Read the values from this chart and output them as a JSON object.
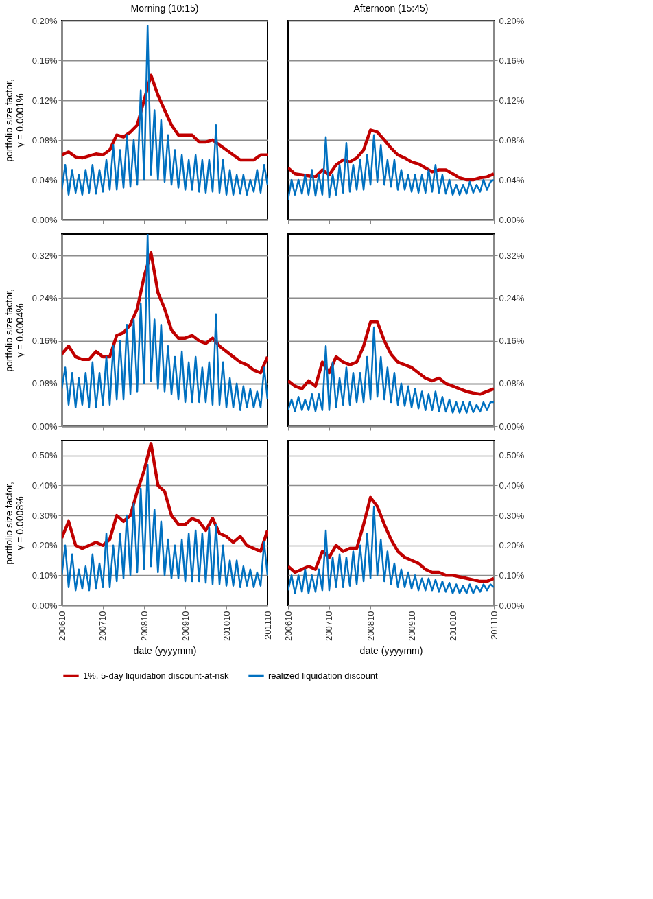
{
  "chart_data": [
    {
      "type": "line",
      "title": "Morning (10:15)",
      "ylabel": "portfolio size factor, γ = 0.0001%",
      "grid": "y",
      "tick_labels": "y",
      "x": [
        "2006-10",
        "2006-11",
        "2006-12",
        "2007-01",
        "2007-02",
        "2007-03",
        "2007-04",
        "2007-05",
        "2007-06",
        "2007-07",
        "2007-08",
        "2007-09",
        "2007-10",
        "2007-11",
        "2007-12",
        "2008-01",
        "2008-02",
        "2008-03",
        "2008-04",
        "2008-05",
        "2008-06",
        "2008-07",
        "2008-08",
        "2008-09",
        "2008-10",
        "2008-11",
        "2008-12",
        "2009-01",
        "2009-02",
        "2009-03",
        "2009-04",
        "2009-05",
        "2009-06",
        "2009-07",
        "2009-08",
        "2009-09",
        "2009-10",
        "2009-11",
        "2009-12",
        "2010-01",
        "2010-02",
        "2010-03",
        "2010-04",
        "2010-05",
        "2010-06",
        "2010-07",
        "2010-08",
        "2010-09",
        "2010-10",
        "2010-11",
        "2010-12",
        "2011-01",
        "2011-02",
        "2011-03",
        "2011-04",
        "2011-05",
        "2011-06",
        "2011-07",
        "2011-08",
        "2011-09",
        "2011-10"
      ],
      "xlim": [
        "2006-10",
        "2011-10"
      ],
      "xticks": [
        {
          "value": "2006-10",
          "label": null
        },
        {
          "value": "2007-10",
          "label": null
        },
        {
          "value": "2008-10",
          "label": null
        },
        {
          "value": "2009-10",
          "label": null
        },
        {
          "value": "2010-10",
          "label": null
        },
        {
          "value": "2011-10",
          "label": null
        }
      ],
      "ylim": [
        0,
        0.2
      ],
      "yticks": [
        {
          "value": 0,
          "label": "0.00%"
        },
        {
          "value": 0.04,
          "label": "0.04%"
        },
        {
          "value": 0.08,
          "label": "0.08%"
        },
        {
          "value": 0.12,
          "label": "0.12%"
        },
        {
          "value": 0.16,
          "label": "0.16%"
        },
        {
          "value": 0.2,
          "label": "0.20%"
        }
      ],
      "series": [
        {
          "color": "#c00000",
          "x": [
            "2006-10",
            "2006-12",
            "2007-02",
            "2007-04",
            "2007-06",
            "2007-08",
            "2007-10",
            "2007-12",
            "2008-02",
            "2008-04",
            "2008-06",
            "2008-08",
            "2008-10",
            "2008-12",
            "2009-02",
            "2009-04",
            "2009-06",
            "2009-08",
            "2009-10",
            "2009-12",
            "2010-02",
            "2010-04",
            "2010-06",
            "2010-08",
            "2010-10",
            "2010-12",
            "2011-02",
            "2011-04",
            "2011-06",
            "2011-08",
            "2011-10"
          ],
          "values": [
            0.065,
            0.068,
            0.063,
            0.062,
            0.064,
            0.066,
            0.065,
            0.07,
            0.085,
            0.083,
            0.088,
            0.095,
            0.12,
            0.145,
            0.125,
            0.11,
            0.095,
            0.085,
            0.085,
            0.085,
            0.078,
            0.078,
            0.08,
            0.075,
            0.07,
            0.065,
            0.06,
            0.06,
            0.06,
            0.065,
            0.065
          ]
        },
        {
          "color": "#0070c0",
          "values": [
            0.03,
            0.055,
            0.025,
            0.05,
            0.027,
            0.045,
            0.025,
            0.05,
            0.027,
            0.055,
            0.026,
            0.05,
            0.028,
            0.06,
            0.03,
            0.075,
            0.03,
            0.07,
            0.032,
            0.085,
            0.033,
            0.08,
            0.035,
            0.13,
            0.04,
            0.195,
            0.045,
            0.11,
            0.04,
            0.1,
            0.038,
            0.085,
            0.035,
            0.07,
            0.032,
            0.065,
            0.03,
            0.06,
            0.03,
            0.065,
            0.028,
            0.06,
            0.027,
            0.06,
            0.028,
            0.095,
            0.027,
            0.06,
            0.025,
            0.05,
            0.025,
            0.045,
            0.026,
            0.045,
            0.025,
            0.04,
            0.028,
            0.05,
            0.027,
            0.055,
            0.035
          ]
        }
      ]
    },
    {
      "type": "line",
      "title": "Afternoon (15:45)",
      "grid": "y",
      "tick_labels": "y",
      "x": [
        "2006-10",
        "2006-11",
        "2006-12",
        "2007-01",
        "2007-02",
        "2007-03",
        "2007-04",
        "2007-05",
        "2007-06",
        "2007-07",
        "2007-08",
        "2007-09",
        "2007-10",
        "2007-11",
        "2007-12",
        "2008-01",
        "2008-02",
        "2008-03",
        "2008-04",
        "2008-05",
        "2008-06",
        "2008-07",
        "2008-08",
        "2008-09",
        "2008-10",
        "2008-11",
        "2008-12",
        "2009-01",
        "2009-02",
        "2009-03",
        "2009-04",
        "2009-05",
        "2009-06",
        "2009-07",
        "2009-08",
        "2009-09",
        "2009-10",
        "2009-11",
        "2009-12",
        "2010-01",
        "2010-02",
        "2010-03",
        "2010-04",
        "2010-05",
        "2010-06",
        "2010-07",
        "2010-08",
        "2010-09",
        "2010-10",
        "2010-11",
        "2010-12",
        "2011-01",
        "2011-02",
        "2011-03",
        "2011-04",
        "2011-05",
        "2011-06",
        "2011-07",
        "2011-08",
        "2011-09",
        "2011-10"
      ],
      "xlim": [
        "2006-10",
        "2011-10"
      ],
      "xticks": [
        {
          "value": "2006-10",
          "label": null
        },
        {
          "value": "2007-10",
          "label": null
        },
        {
          "value": "2008-10",
          "label": null
        },
        {
          "value": "2009-10",
          "label": null
        },
        {
          "value": "2010-10",
          "label": null
        },
        {
          "value": "2011-10",
          "label": null
        }
      ],
      "y2lim": [
        0,
        0.2
      ],
      "y2ticks": [
        {
          "value": 0,
          "label": "0.00%"
        },
        {
          "value": 0.04,
          "label": "0.04%"
        },
        {
          "value": 0.08,
          "label": "0.08%"
        },
        {
          "value": 0.12,
          "label": "0.12%"
        },
        {
          "value": 0.16,
          "label": "0.16%"
        },
        {
          "value": 0.2,
          "label": "0.20%"
        }
      ],
      "series": [
        {
          "color": "#c00000",
          "axis": "y2",
          "x": [
            "2006-10",
            "2006-12",
            "2007-02",
            "2007-04",
            "2007-06",
            "2007-08",
            "2007-10",
            "2007-12",
            "2008-02",
            "2008-04",
            "2008-06",
            "2008-08",
            "2008-10",
            "2008-12",
            "2009-02",
            "2009-04",
            "2009-06",
            "2009-08",
            "2009-10",
            "2009-12",
            "2010-02",
            "2010-04",
            "2010-06",
            "2010-08",
            "2010-10",
            "2010-12",
            "2011-02",
            "2011-04",
            "2011-06",
            "2011-08",
            "2011-10"
          ],
          "values": [
            0.052,
            0.046,
            0.045,
            0.044,
            0.043,
            0.05,
            0.045,
            0.055,
            0.06,
            0.058,
            0.062,
            0.07,
            0.09,
            0.088,
            0.08,
            0.072,
            0.065,
            0.062,
            0.058,
            0.056,
            0.052,
            0.048,
            0.05,
            0.05,
            0.046,
            0.042,
            0.04,
            0.04,
            0.042,
            0.043,
            0.046
          ]
        },
        {
          "color": "#0070c0",
          "axis": "y2",
          "values": [
            0.02,
            0.04,
            0.025,
            0.04,
            0.026,
            0.045,
            0.025,
            0.05,
            0.024,
            0.045,
            0.025,
            0.083,
            0.022,
            0.045,
            0.025,
            0.055,
            0.027,
            0.077,
            0.028,
            0.055,
            0.03,
            0.06,
            0.03,
            0.065,
            0.035,
            0.085,
            0.038,
            0.075,
            0.035,
            0.06,
            0.033,
            0.06,
            0.03,
            0.05,
            0.03,
            0.045,
            0.028,
            0.045,
            0.027,
            0.045,
            0.027,
            0.05,
            0.028,
            0.055,
            0.027,
            0.045,
            0.026,
            0.04,
            0.025,
            0.035,
            0.025,
            0.035,
            0.026,
            0.038,
            0.027,
            0.035,
            0.028,
            0.04,
            0.03,
            0.038,
            0.04
          ]
        }
      ]
    },
    {
      "type": "line",
      "ylabel": "portfolio size factor, γ = 0.0004%",
      "grid": "y",
      "tick_labels": "y",
      "x": [
        "2006-10",
        "2006-11",
        "2006-12",
        "2007-01",
        "2007-02",
        "2007-03",
        "2007-04",
        "2007-05",
        "2007-06",
        "2007-07",
        "2007-08",
        "2007-09",
        "2007-10",
        "2007-11",
        "2007-12",
        "2008-01",
        "2008-02",
        "2008-03",
        "2008-04",
        "2008-05",
        "2008-06",
        "2008-07",
        "2008-08",
        "2008-09",
        "2008-10",
        "2008-11",
        "2008-12",
        "2009-01",
        "2009-02",
        "2009-03",
        "2009-04",
        "2009-05",
        "2009-06",
        "2009-07",
        "2009-08",
        "2009-09",
        "2009-10",
        "2009-11",
        "2009-12",
        "2010-01",
        "2010-02",
        "2010-03",
        "2010-04",
        "2010-05",
        "2010-06",
        "2010-07",
        "2010-08",
        "2010-09",
        "2010-10",
        "2010-11",
        "2010-12",
        "2011-01",
        "2011-02",
        "2011-03",
        "2011-04",
        "2011-05",
        "2011-06",
        "2011-07",
        "2011-08",
        "2011-09",
        "2011-10"
      ],
      "xlim": [
        "2006-10",
        "2011-10"
      ],
      "xticks": [
        {
          "value": "2006-10",
          "label": null
        },
        {
          "value": "2007-10",
          "label": null
        },
        {
          "value": "2008-10",
          "label": null
        },
        {
          "value": "2009-10",
          "label": null
        },
        {
          "value": "2010-10",
          "label": null
        },
        {
          "value": "2011-10",
          "label": null
        }
      ],
      "ylim": [
        0,
        0.36
      ],
      "yticks": [
        {
          "value": 0,
          "label": "0.00%"
        },
        {
          "value": 0.08,
          "label": "0.08%"
        },
        {
          "value": 0.16,
          "label": "0.16%"
        },
        {
          "value": 0.24,
          "label": "0.24%"
        },
        {
          "value": 0.32,
          "label": "0.32%"
        }
      ],
      "series": [
        {
          "color": "#c00000",
          "x": [
            "2006-10",
            "2006-12",
            "2007-02",
            "2007-04",
            "2007-06",
            "2007-08",
            "2007-10",
            "2007-12",
            "2008-02",
            "2008-04",
            "2008-06",
            "2008-08",
            "2008-10",
            "2008-12",
            "2009-02",
            "2009-04",
            "2009-06",
            "2009-08",
            "2009-10",
            "2009-12",
            "2010-02",
            "2010-04",
            "2010-06",
            "2010-08",
            "2010-10",
            "2010-12",
            "2011-02",
            "2011-04",
            "2011-06",
            "2011-08",
            "2011-10"
          ],
          "values": [
            0.135,
            0.15,
            0.13,
            0.125,
            0.125,
            0.14,
            0.13,
            0.13,
            0.17,
            0.175,
            0.19,
            0.22,
            0.28,
            0.325,
            0.25,
            0.22,
            0.18,
            0.165,
            0.165,
            0.17,
            0.16,
            0.155,
            0.165,
            0.15,
            0.14,
            0.13,
            0.12,
            0.115,
            0.105,
            0.1,
            0.13
          ]
        },
        {
          "color": "#0070c0",
          "values": [
            0.07,
            0.11,
            0.04,
            0.1,
            0.035,
            0.09,
            0.04,
            0.1,
            0.035,
            0.12,
            0.035,
            0.1,
            0.04,
            0.13,
            0.04,
            0.15,
            0.05,
            0.16,
            0.05,
            0.19,
            0.06,
            0.2,
            0.065,
            0.23,
            0.08,
            0.36,
            0.085,
            0.2,
            0.07,
            0.19,
            0.065,
            0.15,
            0.06,
            0.13,
            0.05,
            0.14,
            0.045,
            0.12,
            0.045,
            0.13,
            0.045,
            0.11,
            0.045,
            0.12,
            0.04,
            0.21,
            0.04,
            0.12,
            0.035,
            0.09,
            0.035,
            0.08,
            0.03,
            0.075,
            0.035,
            0.07,
            0.035,
            0.065,
            0.035,
            0.11,
            0.05
          ]
        }
      ]
    },
    {
      "type": "line",
      "grid": "y",
      "tick_labels": "y",
      "x": [
        "2006-10",
        "2006-11",
        "2006-12",
        "2007-01",
        "2007-02",
        "2007-03",
        "2007-04",
        "2007-05",
        "2007-06",
        "2007-07",
        "2007-08",
        "2007-09",
        "2007-10",
        "2007-11",
        "2007-12",
        "2008-01",
        "2008-02",
        "2008-03",
        "2008-04",
        "2008-05",
        "2008-06",
        "2008-07",
        "2008-08",
        "2008-09",
        "2008-10",
        "2008-11",
        "2008-12",
        "2009-01",
        "2009-02",
        "2009-03",
        "2009-04",
        "2009-05",
        "2009-06",
        "2009-07",
        "2009-08",
        "2009-09",
        "2009-10",
        "2009-11",
        "2009-12",
        "2010-01",
        "2010-02",
        "2010-03",
        "2010-04",
        "2010-05",
        "2010-06",
        "2010-07",
        "2010-08",
        "2010-09",
        "2010-10",
        "2010-11",
        "2010-12",
        "2011-01",
        "2011-02",
        "2011-03",
        "2011-04",
        "2011-05",
        "2011-06",
        "2011-07",
        "2011-08",
        "2011-09",
        "2011-10"
      ],
      "xlim": [
        "2006-10",
        "2011-10"
      ],
      "xticks": [
        {
          "value": "2006-10",
          "label": null
        },
        {
          "value": "2007-10",
          "label": null
        },
        {
          "value": "2008-10",
          "label": null
        },
        {
          "value": "2009-10",
          "label": null
        },
        {
          "value": "2010-10",
          "label": null
        },
        {
          "value": "2011-10",
          "label": null
        }
      ],
      "y2lim": [
        0,
        0.36
      ],
      "y2ticks": [
        {
          "value": 0,
          "label": "0.00%"
        },
        {
          "value": 0.08,
          "label": "0.08%"
        },
        {
          "value": 0.16,
          "label": "0.16%"
        },
        {
          "value": 0.24,
          "label": "0.24%"
        },
        {
          "value": 0.32,
          "label": "0.32%"
        }
      ],
      "series": [
        {
          "color": "#c00000",
          "axis": "y2",
          "x": [
            "2006-10",
            "2006-12",
            "2007-02",
            "2007-04",
            "2007-06",
            "2007-08",
            "2007-10",
            "2007-12",
            "2008-02",
            "2008-04",
            "2008-06",
            "2008-08",
            "2008-10",
            "2008-12",
            "2009-02",
            "2009-04",
            "2009-06",
            "2009-08",
            "2009-10",
            "2009-12",
            "2010-02",
            "2010-04",
            "2010-06",
            "2010-08",
            "2010-10",
            "2010-12",
            "2011-02",
            "2011-04",
            "2011-06",
            "2011-08",
            "2011-10"
          ],
          "values": [
            0.085,
            0.075,
            0.07,
            0.085,
            0.075,
            0.12,
            0.1,
            0.13,
            0.12,
            0.115,
            0.12,
            0.15,
            0.195,
            0.195,
            0.16,
            0.135,
            0.12,
            0.115,
            0.11,
            0.1,
            0.09,
            0.085,
            0.09,
            0.08,
            0.075,
            0.07,
            0.065,
            0.062,
            0.06,
            0.065,
            0.07
          ]
        },
        {
          "color": "#0070c0",
          "axis": "y2",
          "values": [
            0.03,
            0.05,
            0.028,
            0.055,
            0.03,
            0.05,
            0.03,
            0.06,
            0.028,
            0.06,
            0.03,
            0.15,
            0.03,
            0.12,
            0.035,
            0.09,
            0.04,
            0.11,
            0.04,
            0.1,
            0.045,
            0.1,
            0.045,
            0.13,
            0.05,
            0.185,
            0.055,
            0.13,
            0.05,
            0.11,
            0.045,
            0.1,
            0.04,
            0.08,
            0.038,
            0.075,
            0.035,
            0.07,
            0.033,
            0.065,
            0.03,
            0.06,
            0.03,
            0.065,
            0.028,
            0.055,
            0.027,
            0.05,
            0.025,
            0.045,
            0.025,
            0.045,
            0.025,
            0.045,
            0.026,
            0.04,
            0.027,
            0.045,
            0.03,
            0.045,
            0.045
          ]
        }
      ]
    },
    {
      "type": "line",
      "ylabel": "portfolio size factor, γ = 0.0008%",
      "xlabel": "date (yyyymm)",
      "grid": "y",
      "legend": "bottom",
      "x": [
        "2006-10",
        "2006-11",
        "2006-12",
        "2007-01",
        "2007-02",
        "2007-03",
        "2007-04",
        "2007-05",
        "2007-06",
        "2007-07",
        "2007-08",
        "2007-09",
        "2007-10",
        "2007-11",
        "2007-12",
        "2008-01",
        "2008-02",
        "2008-03",
        "2008-04",
        "2008-05",
        "2008-06",
        "2008-07",
        "2008-08",
        "2008-09",
        "2008-10",
        "2008-11",
        "2008-12",
        "2009-01",
        "2009-02",
        "2009-03",
        "2009-04",
        "2009-05",
        "2009-06",
        "2009-07",
        "2009-08",
        "2009-09",
        "2009-10",
        "2009-11",
        "2009-12",
        "2010-01",
        "2010-02",
        "2010-03",
        "2010-04",
        "2010-05",
        "2010-06",
        "2010-07",
        "2010-08",
        "2010-09",
        "2010-10",
        "2010-11",
        "2010-12",
        "2011-01",
        "2011-02",
        "2011-03",
        "2011-04",
        "2011-05",
        "2011-06",
        "2011-07",
        "2011-08",
        "2011-09",
        "2011-10"
      ],
      "xlim": [
        "2006-10",
        "2011-10"
      ],
      "xticks": [
        {
          "value": "2006-10",
          "label": "200610"
        },
        {
          "value": "2007-10",
          "label": "200710"
        },
        {
          "value": "2008-10",
          "label": "200810"
        },
        {
          "value": "2009-10",
          "label": "200910"
        },
        {
          "value": "2010-10",
          "label": "201010"
        },
        {
          "value": "2011-10",
          "label": "201110"
        }
      ],
      "ylim": [
        0,
        0.55
      ],
      "yticks": [
        {
          "value": 0,
          "label": "0.00%"
        },
        {
          "value": 0.1,
          "label": "0.10%"
        },
        {
          "value": 0.2,
          "label": "0.20%"
        },
        {
          "value": 0.3,
          "label": "0.30%"
        },
        {
          "value": 0.4,
          "label": "0.40%"
        },
        {
          "value": 0.5,
          "label": "0.50%"
        }
      ],
      "series": [
        {
          "name": "1%, 5-day liquidation discount-at-risk",
          "color": "#c00000",
          "x": [
            "2006-10",
            "2006-12",
            "2007-02",
            "2007-04",
            "2007-06",
            "2007-08",
            "2007-10",
            "2007-12",
            "2008-02",
            "2008-04",
            "2008-06",
            "2008-08",
            "2008-10",
            "2008-12",
            "2009-02",
            "2009-04",
            "2009-06",
            "2009-08",
            "2009-10",
            "2009-12",
            "2010-02",
            "2010-04",
            "2010-06",
            "2010-08",
            "2010-10",
            "2010-12",
            "2011-02",
            "2011-04",
            "2011-06",
            "2011-08",
            "2011-10"
          ],
          "values": [
            0.225,
            0.28,
            0.2,
            0.19,
            0.2,
            0.21,
            0.2,
            0.22,
            0.3,
            0.28,
            0.3,
            0.38,
            0.45,
            0.54,
            0.4,
            0.38,
            0.3,
            0.27,
            0.27,
            0.29,
            0.28,
            0.25,
            0.29,
            0.24,
            0.23,
            0.21,
            0.23,
            0.2,
            0.19,
            0.18,
            0.25
          ]
        },
        {
          "name": "realized liquidation discount",
          "color": "#0070c0",
          "values": [
            0.1,
            0.2,
            0.06,
            0.17,
            0.05,
            0.12,
            0.055,
            0.13,
            0.05,
            0.17,
            0.055,
            0.14,
            0.06,
            0.24,
            0.06,
            0.2,
            0.08,
            0.24,
            0.09,
            0.3,
            0.1,
            0.34,
            0.11,
            0.39,
            0.12,
            0.47,
            0.13,
            0.32,
            0.11,
            0.28,
            0.1,
            0.22,
            0.09,
            0.2,
            0.09,
            0.22,
            0.08,
            0.24,
            0.08,
            0.25,
            0.08,
            0.24,
            0.075,
            0.26,
            0.07,
            0.27,
            0.07,
            0.2,
            0.065,
            0.15,
            0.065,
            0.15,
            0.06,
            0.13,
            0.065,
            0.12,
            0.06,
            0.11,
            0.065,
            0.21,
            0.1
          ]
        }
      ]
    },
    {
      "type": "line",
      "xlabel": "date (yyyymm)",
      "grid": "y",
      "x": [
        "2006-10",
        "2006-11",
        "2006-12",
        "2007-01",
        "2007-02",
        "2007-03",
        "2007-04",
        "2007-05",
        "2007-06",
        "2007-07",
        "2007-08",
        "2007-09",
        "2007-10",
        "2007-11",
        "2007-12",
        "2008-01",
        "2008-02",
        "2008-03",
        "2008-04",
        "2008-05",
        "2008-06",
        "2008-07",
        "2008-08",
        "2008-09",
        "2008-10",
        "2008-11",
        "2008-12",
        "2009-01",
        "2009-02",
        "2009-03",
        "2009-04",
        "2009-05",
        "2009-06",
        "2009-07",
        "2009-08",
        "2009-09",
        "2009-10",
        "2009-11",
        "2009-12",
        "2010-01",
        "2010-02",
        "2010-03",
        "2010-04",
        "2010-05",
        "2010-06",
        "2010-07",
        "2010-08",
        "2010-09",
        "2010-10",
        "2010-11",
        "2010-12",
        "2011-01",
        "2011-02",
        "2011-03",
        "2011-04",
        "2011-05",
        "2011-06",
        "2011-07",
        "2011-08",
        "2011-09",
        "2011-10"
      ],
      "xlim": [
        "2006-10",
        "2011-10"
      ],
      "xticks": [
        {
          "value": "2006-10",
          "label": "200610"
        },
        {
          "value": "2007-10",
          "label": "200710"
        },
        {
          "value": "2008-10",
          "label": "200810"
        },
        {
          "value": "2009-10",
          "label": "200910"
        },
        {
          "value": "2010-10",
          "label": "201010"
        },
        {
          "value": "2011-10",
          "label": "201110"
        }
      ],
      "y2lim": [
        0,
        0.55
      ],
      "y2ticks": [
        {
          "value": 0,
          "label": "0.00%"
        },
        {
          "value": 0.1,
          "label": "0.10%"
        },
        {
          "value": 0.2,
          "label": "0.20%"
        },
        {
          "value": 0.3,
          "label": "0.30%"
        },
        {
          "value": 0.4,
          "label": "0.40%"
        },
        {
          "value": 0.5,
          "label": "0.50%"
        }
      ],
      "series": [
        {
          "color": "#c00000",
          "axis": "y2",
          "x": [
            "2006-10",
            "2006-12",
            "2007-02",
            "2007-04",
            "2007-06",
            "2007-08",
            "2007-10",
            "2007-12",
            "2008-02",
            "2008-04",
            "2008-06",
            "2008-08",
            "2008-10",
            "2008-12",
            "2009-02",
            "2009-04",
            "2009-06",
            "2009-08",
            "2009-10",
            "2009-12",
            "2010-02",
            "2010-04",
            "2010-06",
            "2010-08",
            "2010-10",
            "2010-12",
            "2011-02",
            "2011-04",
            "2011-06",
            "2011-08",
            "2011-10"
          ],
          "values": [
            0.13,
            0.11,
            0.12,
            0.13,
            0.12,
            0.18,
            0.16,
            0.2,
            0.18,
            0.19,
            0.19,
            0.27,
            0.36,
            0.33,
            0.27,
            0.22,
            0.18,
            0.16,
            0.15,
            0.14,
            0.12,
            0.11,
            0.11,
            0.1,
            0.1,
            0.095,
            0.09,
            0.085,
            0.08,
            0.08,
            0.09
          ]
        },
        {
          "color": "#0070c0",
          "axis": "y2",
          "values": [
            0.05,
            0.1,
            0.04,
            0.1,
            0.045,
            0.12,
            0.04,
            0.1,
            0.045,
            0.12,
            0.05,
            0.25,
            0.05,
            0.16,
            0.06,
            0.17,
            0.06,
            0.16,
            0.065,
            0.18,
            0.07,
            0.2,
            0.08,
            0.24,
            0.09,
            0.33,
            0.1,
            0.22,
            0.08,
            0.18,
            0.07,
            0.14,
            0.06,
            0.12,
            0.06,
            0.11,
            0.055,
            0.1,
            0.05,
            0.09,
            0.05,
            0.09,
            0.05,
            0.085,
            0.045,
            0.08,
            0.045,
            0.075,
            0.04,
            0.07,
            0.04,
            0.065,
            0.04,
            0.07,
            0.04,
            0.065,
            0.045,
            0.07,
            0.05,
            0.07,
            0.06
          ]
        }
      ]
    }
  ]
}
